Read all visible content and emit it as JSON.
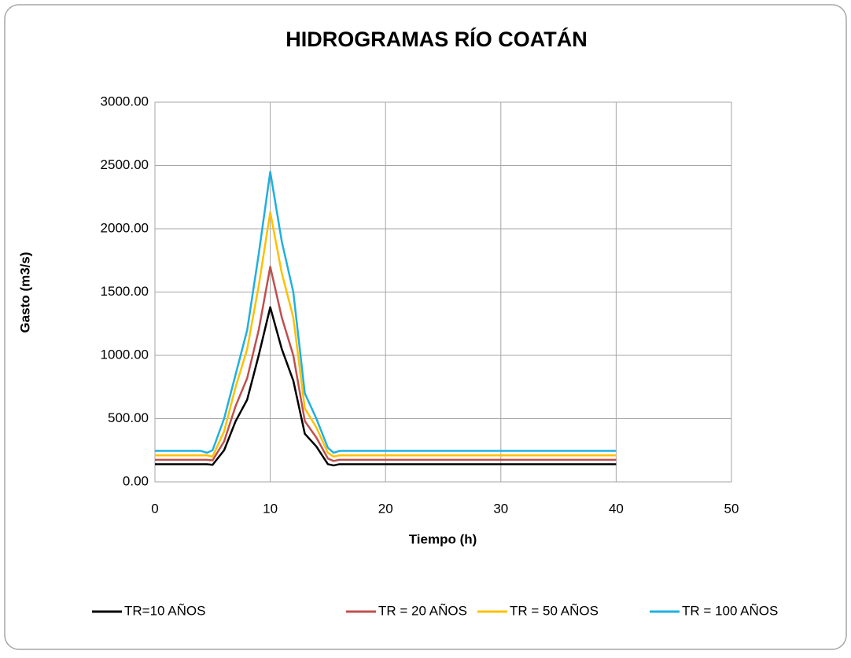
{
  "chart_data": {
    "type": "line",
    "title": "HIDROGRAMAS RÍO COATÁN",
    "x_label": "Tiempo (h)",
    "y_label": "Gasto (m3/s)",
    "x": [
      0,
      4,
      4.5,
      5,
      6,
      7,
      8,
      9,
      10,
      11,
      12,
      13,
      14,
      15,
      15.5,
      16,
      20,
      30,
      40
    ],
    "series": [
      {
        "name": "TR=10 AÑOS",
        "color": "#000000",
        "values": [
          140,
          140,
          140,
          135,
          250,
          480,
          650,
          1000,
          1380,
          1050,
          800,
          380,
          280,
          140,
          130,
          140,
          140,
          140,
          140
        ]
      },
      {
        "name": "TR = 20 AÑOS",
        "color": "#c0504d",
        "values": [
          175,
          175,
          175,
          170,
          320,
          600,
          820,
          1200,
          1700,
          1300,
          1000,
          480,
          350,
          185,
          165,
          175,
          175,
          175,
          175
        ]
      },
      {
        "name": "TR = 50 AÑOS",
        "color": "#ffc000",
        "values": [
          210,
          210,
          210,
          200,
          400,
          750,
          1050,
          1550,
          2130,
          1650,
          1300,
          580,
          430,
          230,
          200,
          210,
          210,
          210,
          210
        ]
      },
      {
        "name": "TR = 100 AÑOS",
        "color": "#1fb0e0",
        "values": [
          245,
          245,
          230,
          250,
          500,
          850,
          1200,
          1800,
          2450,
          1900,
          1500,
          700,
          500,
          270,
          230,
          245,
          245,
          245,
          245
        ]
      }
    ],
    "xlim": [
      0,
      50
    ],
    "xticks": [
      0,
      10,
      20,
      30,
      40,
      50
    ],
    "ylim": [
      0,
      3000
    ],
    "yticks": [
      {
        "value": 0,
        "label": "0.00"
      },
      {
        "value": 500,
        "label": "500.00"
      },
      {
        "value": 1000,
        "label": "1000.00"
      },
      {
        "value": 1500,
        "label": "1500.00"
      },
      {
        "value": 2000,
        "label": "2000.00"
      },
      {
        "value": 2500,
        "label": "2500.00"
      },
      {
        "value": 3000,
        "label": "3000.00"
      }
    ],
    "grid": true,
    "legend": "bottom"
  }
}
